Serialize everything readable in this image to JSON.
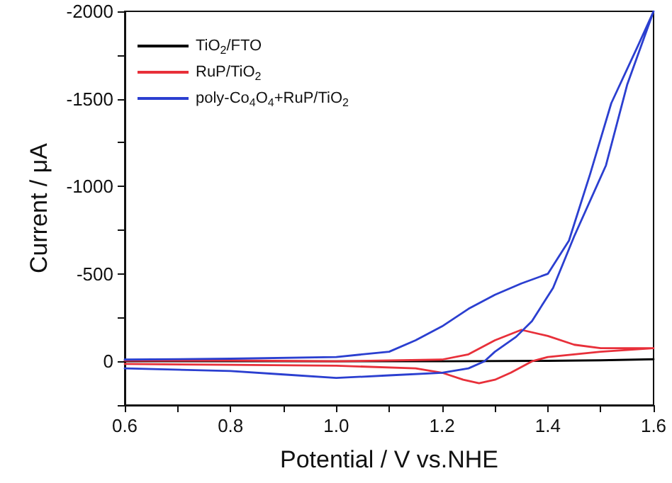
{
  "chart_data": {
    "type": "line",
    "xlabel": "Potential / V vs.NHE",
    "ylabel": "Current / μA",
    "xlim": [
      0.6,
      1.6
    ],
    "ylim": [
      250,
      -2000
    ],
    "xticks": [
      0.6,
      {
        "value": 0.7,
        "label": null
      },
      0.8,
      {
        "value": 0.9,
        "label": null
      },
      {
        "value": 1.0,
        "label": "1.0"
      },
      {
        "value": 1.1,
        "label": null
      },
      1.2,
      {
        "value": 1.3,
        "label": null
      },
      1.4,
      {
        "value": 1.5,
        "label": null
      },
      1.6
    ],
    "yticks": [
      {
        "value": 250,
        "label": null
      },
      0,
      {
        "value": -250,
        "label": null
      },
      -500,
      {
        "value": -750,
        "label": null
      },
      -1000,
      {
        "value": -1250,
        "label": null
      },
      -1500,
      {
        "value": -1750,
        "label": null
      },
      -2000
    ],
    "grid": false,
    "legend": "top left",
    "marker": "none",
    "line_style": "solid",
    "series": [
      {
        "name": "TiO$_{2}$/FTO",
        "color": "#000000",
        "x": [
          0.6,
          0.8,
          1.0,
          1.2,
          1.4,
          1.5,
          1.6
        ],
        "values": [
          0,
          0,
          0,
          0,
          -3,
          -6,
          -12
        ]
      },
      {
        "name": "RuP/TiO$_{2}$",
        "color": "#e8303a",
        "x": [
          0.6,
          0.8,
          1.0,
          1.2,
          1.25,
          1.3,
          1.35,
          1.4,
          1.45,
          1.5,
          1.6,
          1.5,
          1.45,
          1.4,
          1.37,
          1.33,
          1.3,
          1.27,
          1.24,
          1.2,
          1.15,
          1.0,
          0.8,
          0.6
        ],
        "values": [
          -5,
          -5,
          0,
          -10,
          -40,
          -120,
          -180,
          -145,
          -95,
          -75,
          -75,
          -55,
          -40,
          -25,
          0,
          65,
          105,
          125,
          105,
          65,
          40,
          25,
          20,
          15
        ]
      },
      {
        "name": "poly-Co$_{4}$O$_{4}$+RuP/TiO$_{2}$",
        "color": "#2b3fd0",
        "x": [
          0.6,
          0.8,
          1.0,
          1.1,
          1.15,
          1.2,
          1.25,
          1.3,
          1.35,
          1.4,
          1.44,
          1.48,
          1.52,
          1.57,
          1.6,
          1.55,
          1.51,
          1.45,
          1.41,
          1.37,
          1.34,
          1.3,
          1.28,
          1.25,
          1.2,
          1.1,
          1.0,
          0.9,
          0.8,
          0.6
        ],
        "values": [
          -10,
          -15,
          -25,
          -55,
          -120,
          -200,
          -300,
          -380,
          -445,
          -500,
          -690,
          -1070,
          -1475,
          -1800,
          -2000,
          -1580,
          -1120,
          -715,
          -420,
          -230,
          -140,
          -55,
          0,
          40,
          65,
          80,
          95,
          75,
          55,
          40
        ]
      }
    ]
  }
}
